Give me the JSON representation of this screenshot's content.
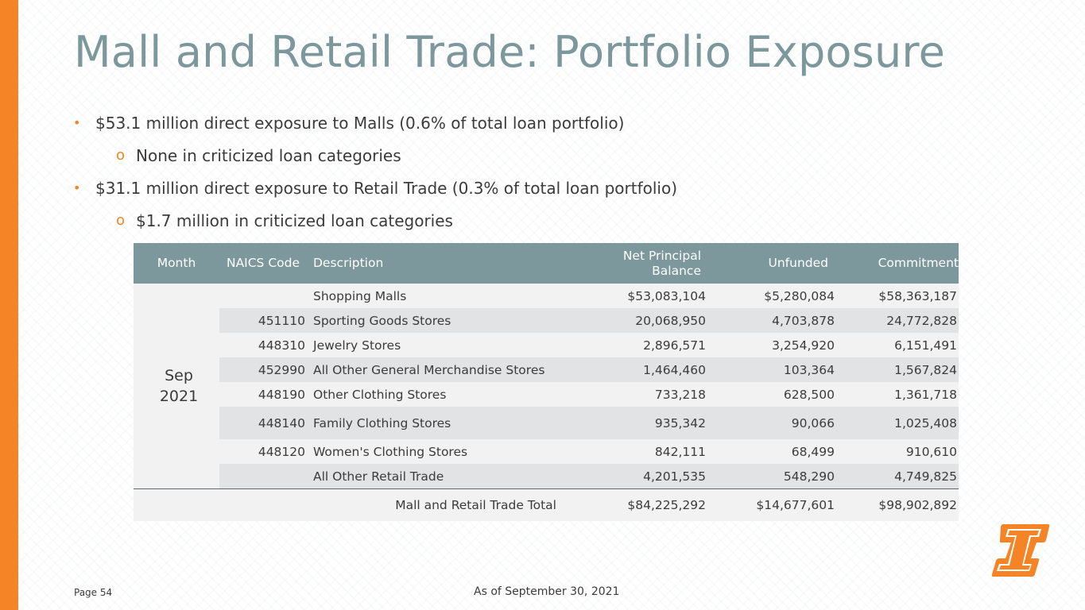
{
  "title": "Mall and Retail Trade: Portfolio Exposure",
  "bullets": [
    {
      "text": "$53.1 million direct exposure to Malls (0.6% of total loan portfolio)",
      "marker": "•"
    },
    {
      "text": "None in criticized loan categories",
      "marker": "o"
    },
    {
      "text": "$31.1 million direct exposure to Retail Trade (0.3% of total loan portfolio)",
      "marker": "•"
    },
    {
      "text": "$1.7 million in criticized loan categories",
      "marker": "o"
    }
  ],
  "table": {
    "headers": {
      "month": "Month",
      "naics": "NAICS Code",
      "description": "Description",
      "net_principal_1": "Net Principal",
      "net_principal_2": "Balance",
      "unfunded": "Unfunded",
      "commitment": "Commitment"
    },
    "month_line1": "Sep",
    "month_line2": "2021",
    "rows": [
      {
        "naics": "",
        "description": "Shopping Malls",
        "net": "$53,083,104",
        "unfunded": "$5,280,084",
        "commitment": "$58,363,187"
      },
      {
        "naics": "451110",
        "description": "Sporting Goods Stores",
        "net": "20,068,950",
        "unfunded": "4,703,878",
        "commitment": "24,772,828"
      },
      {
        "naics": "448310",
        "description": "Jewelry Stores",
        "net": "2,896,571",
        "unfunded": "3,254,920",
        "commitment": "6,151,491"
      },
      {
        "naics": "452990",
        "description": "All Other General Merchandise Stores",
        "net": "1,464,460",
        "unfunded": "103,364",
        "commitment": "1,567,824"
      },
      {
        "naics": "448190",
        "description": "Other Clothing Stores",
        "net": "733,218",
        "unfunded": "628,500",
        "commitment": "1,361,718"
      },
      {
        "naics": "448140",
        "description": "Family Clothing Stores",
        "net": "935,342",
        "unfunded": "90,066",
        "commitment": "1,025,408"
      },
      {
        "naics": "448120",
        "description": "Women's Clothing Stores",
        "net": "842,111",
        "unfunded": "68,499",
        "commitment": "910,610"
      },
      {
        "naics": "",
        "description": "All Other Retail Trade",
        "net": "4,201,535",
        "unfunded": "548,290",
        "commitment": "4,749,825"
      }
    ],
    "total": {
      "label": "Mall and Retail Trade Total",
      "net": "$84,225,292",
      "unfunded": "$14,677,601",
      "commitment": "$98,902,892"
    }
  },
  "footer": {
    "page": "Page 54",
    "as_of": "As of September 30, 2021"
  },
  "colors": {
    "accent": "#f58426",
    "title": "#7c989c",
    "header_bg": "#7c989c",
    "text": "#3b3b3b"
  }
}
